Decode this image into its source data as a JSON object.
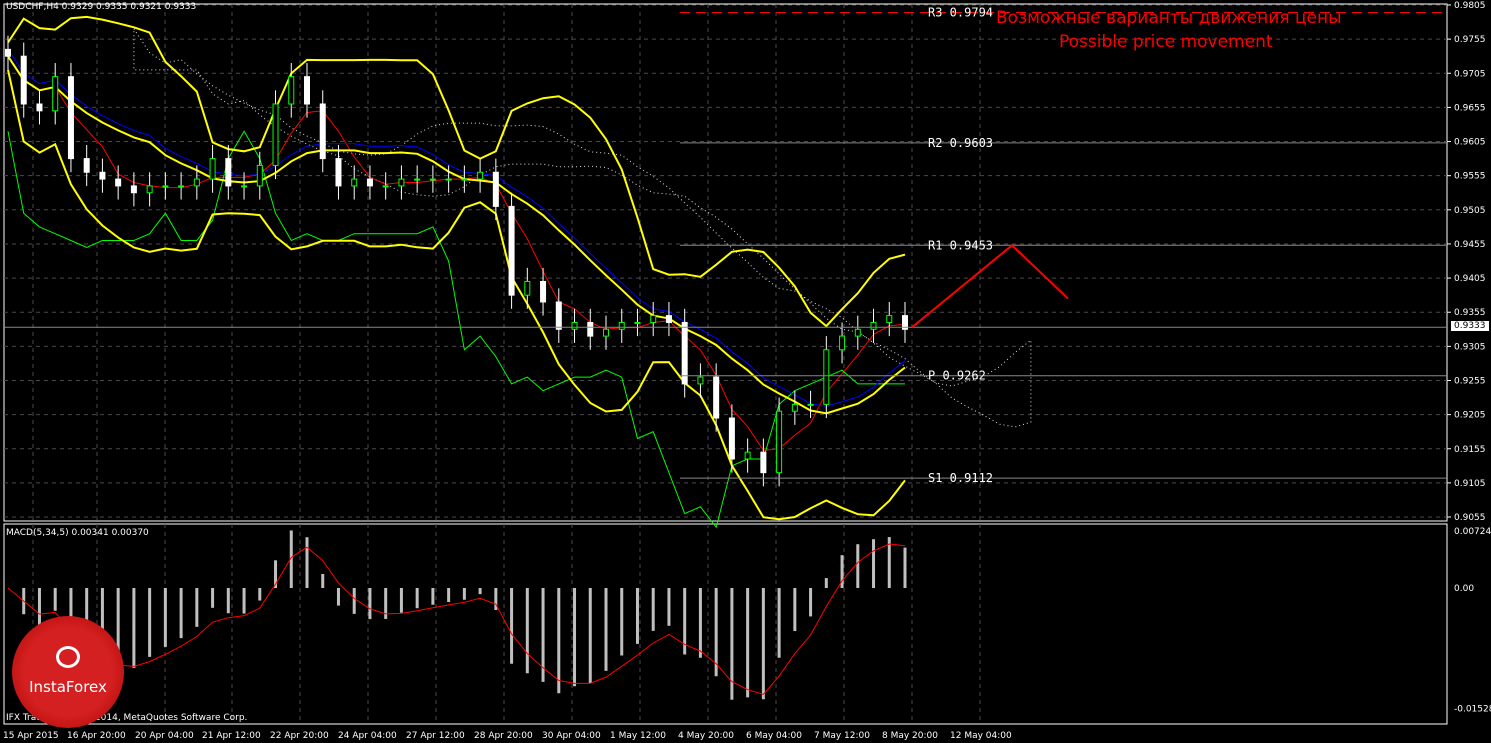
{
  "header": {
    "title": "USDCHF,H4 0.9329 0.9335 0.9321 0.9333"
  },
  "annotation": {
    "ru": "Возможные варианты движения цены",
    "en": "Possible price movement"
  },
  "macd_label": "MACD(5,34,5) 0.00341 0.00370",
  "copyright": "IFX Trader, © 2001-2014, MetaQuotes Software Corp.",
  "logo_text": "InstaForex",
  "current_price": "0.9333",
  "colors": {
    "bg": "#000000",
    "band": "#ffff00",
    "forecast": "#ff0000",
    "grid": "#4a4a4a",
    "fast": "#ff0000",
    "slow": "#00ff00",
    "kijun": "#0000ff"
  },
  "chart_data": [
    {
      "type": "candlestick",
      "title": "USDCHF,H4",
      "ylim": [
        0.903,
        0.981
      ],
      "y_ticks": [
        "0.9805",
        "0.9755",
        "0.9705",
        "0.9655",
        "0.9605",
        "0.9555",
        "0.9505",
        "0.9455",
        "0.9405",
        "0.9355",
        "0.9305",
        "0.9255",
        "0.9205",
        "0.9155",
        "0.9105",
        "0.9055"
      ],
      "x_ticks": [
        "15 Apr 2015",
        "16 Apr 20:00",
        "20 Apr 04:00",
        "21 Apr 12:00",
        "22 Apr 20:00",
        "24 Apr 04:00",
        "27 Apr 12:00",
        "28 Apr 20:00",
        "30 Apr 04:00",
        "1 May 12:00",
        "4 May 20:00",
        "6 May 04:00",
        "7 May 12:00",
        "8 May 20:00",
        "12 May 04:00"
      ],
      "closes_approx": [
        0.973,
        0.966,
        0.965,
        0.97,
        0.958,
        0.956,
        0.955,
        0.954,
        0.953,
        0.954,
        0.954,
        0.954,
        0.955,
        0.958,
        0.954,
        0.954,
        0.957,
        0.966,
        0.97,
        0.966,
        0.958,
        0.954,
        0.955,
        0.954,
        0.954,
        0.955,
        0.955,
        0.955,
        0.955,
        0.955,
        0.956,
        0.951,
        0.938,
        0.94,
        0.937,
        0.933,
        0.934,
        0.932,
        0.933,
        0.934,
        0.934,
        0.935,
        0.934,
        0.925,
        0.926,
        0.92,
        0.914,
        0.915,
        0.912,
        0.921,
        0.922,
        0.922,
        0.93,
        0.932,
        0.933,
        0.934,
        0.935,
        0.933
      ],
      "pivot_levels": [
        {
          "label": "R3",
          "value": "0.9794"
        },
        {
          "label": "R2",
          "value": "0.9603"
        },
        {
          "label": "R1",
          "value": "0.9453"
        },
        {
          "label": "P",
          "value": "0.9262"
        },
        {
          "label": "S1",
          "value": "0.9112"
        }
      ],
      "forecast_path": [
        0.9333,
        0.9453,
        0.9375
      ]
    },
    {
      "type": "bar",
      "title": "MACD(5,34,5)",
      "y_ticks": [
        "0.00724",
        "0.00",
        "-0.01528"
      ],
      "ylim": [
        -0.0165,
        0.0078
      ],
      "values_latest": {
        "macd": 0.00341,
        "signal": 0.0037
      }
    }
  ]
}
